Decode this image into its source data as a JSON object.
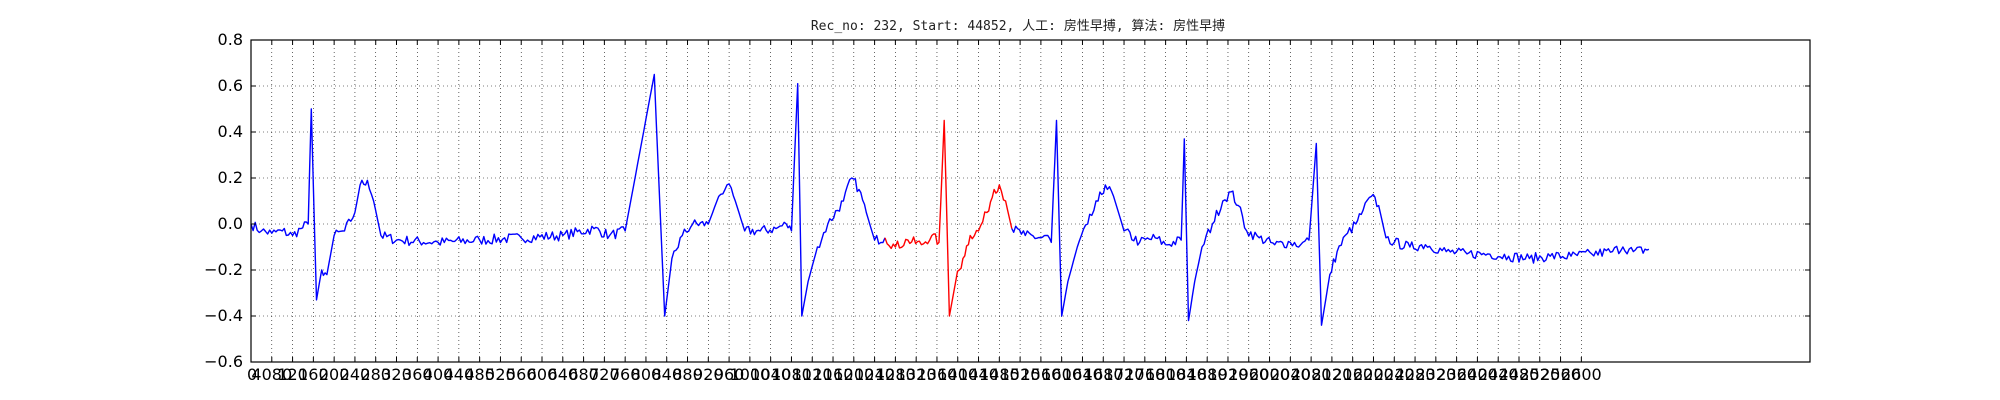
{
  "chart_data": {
    "type": "line",
    "title": "Rec_no: 232, Start: 44852, 人工: 房性早搏, 算法: 房性早搏",
    "xlabel": "",
    "ylabel": "",
    "xlim": [
      0,
      1500
    ],
    "ylim": [
      -0.6,
      0.8
    ],
    "grid": true,
    "yticks": [
      -0.6,
      -0.4,
      -0.2,
      0.0,
      0.2,
      0.4,
      0.6,
      0.8
    ],
    "ytick_labels": [
      "−0.6",
      "−0.4",
      "−0.2",
      "0.0",
      "0.2",
      "0.4",
      "0.6",
      "0.8"
    ],
    "xtick_step": 20,
    "xtick_labels": [
      "0",
      "4080",
      "120",
      "160",
      "200",
      "240",
      "280",
      "320",
      "360",
      "400",
      "440",
      "480",
      "520",
      "560",
      "600",
      "640",
      "680",
      "720",
      "760",
      "800",
      "840",
      "880",
      "920",
      "960",
      "1000",
      "1040",
      "1080",
      "1120",
      "1160",
      "1200",
      "1240",
      "1280",
      "1320",
      "1360",
      "1400",
      "1440",
      "1480",
      "1520",
      "1560",
      "1600",
      "1640",
      "1680",
      "1720",
      "1760",
      "1800",
      "1840",
      "1880",
      "1920",
      "1960",
      "2000",
      "2040",
      "2080",
      "2120",
      "2160",
      "2200",
      "2240",
      "2280",
      "2320",
      "2360",
      "2400",
      "2440",
      "2480",
      "2520",
      "2560",
      "2600"
    ],
    "series": [
      {
        "color": "#0000ff",
        "points": [
          [
            0,
            0.0
          ],
          [
            10,
            -0.03
          ],
          [
            20,
            -0.04
          ],
          [
            30,
            -0.03
          ],
          [
            40,
            -0.05
          ],
          [
            48,
            -0.02
          ],
          [
            55,
            0.0
          ],
          [
            58,
            0.5
          ],
          [
            63,
            -0.33
          ],
          [
            68,
            -0.2
          ],
          [
            73,
            -0.22
          ],
          [
            80,
            -0.05
          ],
          [
            90,
            -0.03
          ],
          [
            100,
            0.05
          ],
          [
            105,
            0.17
          ],
          [
            112,
            0.19
          ],
          [
            118,
            0.1
          ],
          [
            125,
            -0.05
          ],
          [
            140,
            -0.07
          ],
          [
            180,
            -0.08
          ],
          [
            220,
            -0.07
          ],
          [
            260,
            -0.06
          ],
          [
            300,
            -0.05
          ],
          [
            330,
            -0.02
          ],
          [
            345,
            -0.05
          ],
          [
            360,
            -0.03
          ],
          [
            388,
            0.65
          ],
          [
            398,
            -0.4
          ],
          [
            405,
            -0.15
          ],
          [
            415,
            -0.05
          ],
          [
            425,
            0.0
          ],
          [
            440,
            0.0
          ],
          [
            450,
            0.12
          ],
          [
            458,
            0.17
          ],
          [
            466,
            0.1
          ],
          [
            475,
            -0.03
          ],
          [
            490,
            -0.03
          ],
          [
            505,
            -0.02
          ],
          [
            515,
            0.0
          ],
          [
            520,
            -0.03
          ],
          [
            526,
            0.61
          ],
          [
            530,
            -0.4
          ],
          [
            536,
            -0.25
          ],
          [
            545,
            -0.1
          ],
          [
            555,
            0.0
          ],
          [
            570,
            0.1
          ],
          [
            578,
            0.2
          ],
          [
            585,
            0.15
          ],
          [
            592,
            0.05
          ],
          [
            600,
            -0.07
          ],
          [
            610,
            -0.06
          ]
        ]
      },
      {
        "color": "#ff0000",
        "points": [
          [
            610,
            -0.06
          ],
          [
            620,
            -0.1
          ],
          [
            632,
            -0.07
          ],
          [
            645,
            -0.09
          ],
          [
            655,
            -0.05
          ],
          [
            662,
            -0.08
          ],
          [
            667,
            0.45
          ],
          [
            672,
            -0.4
          ],
          [
            678,
            -0.25
          ],
          [
            685,
            -0.15
          ],
          [
            692,
            -0.05
          ],
          [
            700,
            -0.03
          ],
          [
            708,
            0.05
          ],
          [
            715,
            0.15
          ],
          [
            720,
            0.17
          ],
          [
            726,
            0.1
          ],
          [
            732,
            -0.02
          ]
        ]
      },
      {
        "color": "#0000ff",
        "points": [
          [
            732,
            -0.02
          ],
          [
            745,
            -0.05
          ],
          [
            760,
            -0.06
          ],
          [
            765,
            -0.05
          ],
          [
            770,
            -0.08
          ],
          [
            775,
            0.45
          ],
          [
            780,
            -0.4
          ],
          [
            786,
            -0.25
          ],
          [
            795,
            -0.1
          ],
          [
            805,
            0.0
          ],
          [
            815,
            0.1
          ],
          [
            822,
            0.17
          ],
          [
            830,
            0.12
          ],
          [
            840,
            -0.03
          ],
          [
            855,
            -0.08
          ],
          [
            870,
            -0.06
          ],
          [
            880,
            -0.09
          ],
          [
            895,
            -0.07
          ],
          [
            898,
            0.37
          ],
          [
            902,
            -0.42
          ],
          [
            908,
            -0.25
          ],
          [
            915,
            -0.1
          ],
          [
            925,
            0.0
          ],
          [
            935,
            0.1
          ],
          [
            943,
            0.14
          ],
          [
            950,
            0.08
          ],
          [
            958,
            -0.03
          ],
          [
            970,
            -0.06
          ],
          [
            985,
            -0.09
          ],
          [
            1000,
            -0.08
          ],
          [
            1010,
            -0.09
          ],
          [
            1018,
            -0.07
          ],
          [
            1025,
            0.35
          ],
          [
            1030,
            -0.44
          ],
          [
            1038,
            -0.22
          ],
          [
            1045,
            -0.12
          ],
          [
            1055,
            -0.04
          ],
          [
            1063,
            0.0
          ],
          [
            1070,
            0.06
          ],
          [
            1078,
            0.12
          ],
          [
            1085,
            0.08
          ],
          [
            1092,
            -0.06
          ],
          [
            1100,
            -0.08
          ],
          [
            1115,
            -0.1
          ],
          [
            1130,
            -0.09
          ],
          [
            1150,
            -0.12
          ],
          [
            1170,
            -0.13
          ],
          [
            1190,
            -0.13
          ],
          [
            1210,
            -0.14
          ],
          [
            1230,
            -0.15
          ],
          [
            1250,
            -0.14
          ],
          [
            1270,
            -0.14
          ],
          [
            1290,
            -0.13
          ],
          [
            1310,
            -0.12
          ],
          [
            1320,
            -0.1
          ],
          [
            1330,
            -0.12
          ],
          [
            1345,
            -0.11
          ]
        ]
      }
    ]
  }
}
